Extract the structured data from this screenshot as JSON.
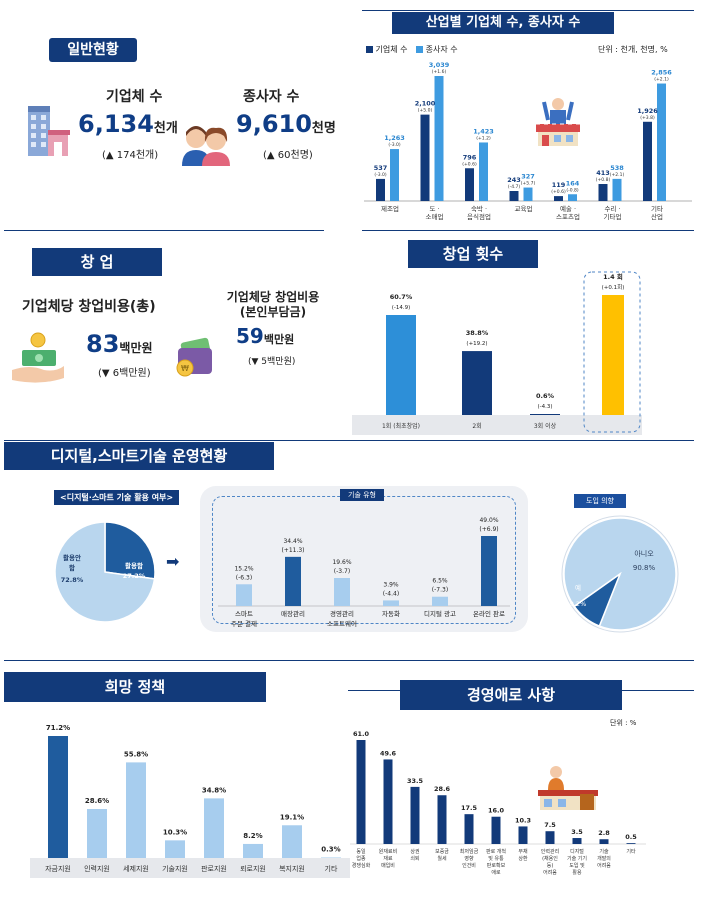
{
  "general": {
    "title": "일반현황",
    "companies": {
      "label": "기업체 수",
      "value": "6,134",
      "unit": "천개",
      "change": "(▲ 174천개)"
    },
    "employees": {
      "label": "종사자 수",
      "value": "9,610",
      "unit": "천명",
      "change": "(▲ 60천명)"
    }
  },
  "industry": {
    "title": "산업별 기업체 수, 종사자 수",
    "unit_note": "단위 : 천개, 천명, %",
    "legend": [
      "기업체 수",
      "종사자 수"
    ],
    "colors": {
      "companies": "#123a7a",
      "employees": "#3e9be0"
    },
    "categories": [
      "제조업",
      "도 · 소매업",
      "숙박 · 음식점업",
      "교육업",
      "예술 · 스포츠업",
      "수리 · 기타업",
      "기타 산업"
    ],
    "companies_values": [
      537,
      2100,
      796,
      243,
      119,
      413,
      1926
    ],
    "companies_labels": [
      "537",
      "2,100",
      "796",
      "243",
      "119",
      "413",
      "1,926"
    ],
    "companies_changes": [
      "(-3.0)",
      "(+5.0)",
      "(+0.6)",
      "(-4.7)",
      "(+0.6)",
      "(+0.8)",
      "(+3.8)"
    ],
    "employees_values": [
      1263,
      3039,
      1423,
      327,
      164,
      538,
      2856
    ],
    "employees_labels": [
      "1,263",
      "3,039",
      "1,423",
      "327",
      "164",
      "538",
      "2,856"
    ],
    "employees_changes": [
      "(-3.0)",
      "(+1.6)",
      "(+1.2)",
      "(+5.7)",
      "(-0.8)",
      "(+2.1)",
      "(+2.1)"
    ]
  },
  "startup": {
    "title": "창 업",
    "total": {
      "label": "기업체당 창업비용(총)",
      "value": "83",
      "unit": "백만원",
      "change": "(▼ 6백만원)"
    },
    "own": {
      "label": "기업체당 창업비용\n(본인부담금)",
      "label_line1": "기업체당 창업비용",
      "label_line2": "(본인부담금)",
      "value": "59",
      "unit": "백만원",
      "change": "(▼ 5백만원)"
    }
  },
  "startup_count": {
    "title": "창업 횟수",
    "categories": [
      "1회 (최초창업)",
      "2회",
      "3회 이상",
      ""
    ],
    "values": [
      60.7,
      38.8,
      0.6,
      1.4
    ],
    "value_labels": [
      "60.7%",
      "38.8%",
      "0.6%",
      "1.4 회"
    ],
    "changes": [
      "(-14.9)",
      "(+19.2)",
      "(-4.3)",
      "(+0.1회)"
    ],
    "colors": [
      "#2d8fd8",
      "#123a7a",
      "#123a7a",
      "#ffc000"
    ]
  },
  "digital": {
    "title": "디지털,스마트기술 운영현황",
    "usage_label": "<디지털·스마트 기술 활용 여부>",
    "pie": {
      "used_label": "활용함",
      "used_value": "27.2%",
      "used": 27.2,
      "unused_label": "활용안함",
      "unused_label_line1": "활용안",
      "unused_label_line2": "함",
      "unused_value": "72.8%",
      "unused": 72.8
    },
    "arrow": "➡",
    "tech_title": "기술 유형",
    "tech_categories": [
      "스마트 주문·결제",
      "매장관리",
      "경영관리 소프트웨어",
      "자동화",
      "디지털 광고",
      "온라인 판로"
    ],
    "tech_cat_line1": [
      "스마트",
      "매장관리",
      "경영관리",
      "자동화",
      "디지털 광고",
      "온라인 판로"
    ],
    "tech_cat_line2": [
      "주문·결제",
      "",
      "소프트웨어",
      "",
      "",
      ""
    ],
    "tech_values": [
      15.2,
      34.4,
      19.6,
      3.9,
      6.5,
      49.0
    ],
    "tech_labels": [
      "15.2%",
      "34.4%",
      "19.6%",
      "3.9%",
      "6.5%",
      "49.0%"
    ],
    "tech_changes": [
      "(-6.3)",
      "(+11.3)",
      "(-3.7)",
      "(-4.4)",
      "(-7.3)",
      "(+6.9)"
    ],
    "intent_title": "도입 의향",
    "intent": {
      "no_label": "아니오",
      "no_value": "90.8%",
      "no": 90.8,
      "yes_label": "예",
      "yes_value": "9.2%",
      "yes": 9.2
    }
  },
  "policy": {
    "title": "희망 정책",
    "categories": [
      "자금지원",
      "인력지원",
      "세제지원",
      "기술지원",
      "판로지원",
      "뢰로지원",
      "복지지원",
      "기타"
    ],
    "values": [
      71.2,
      28.6,
      55.8,
      10.3,
      34.8,
      8.2,
      19.1,
      0.3
    ],
    "labels": [
      "71.2%",
      "28.6%",
      "55.8%",
      "10.3%",
      "34.8%",
      "8.2%",
      "19.1%",
      "0.3%"
    ]
  },
  "difficulty": {
    "title": "경영애로 사항",
    "unit_note": "단위 : %",
    "categories": [
      "동일 업종 경쟁심화",
      "원재료비 재료 매입비",
      "상권 쇠퇴",
      "보증금 월세",
      "최저임금 영향 인건비",
      "판로 개척 및 유통 판로확보 애로",
      "부채 상환",
      "인력관리 (채용인 등) 어려움",
      "디지털 기술 기기 도입 및 활용",
      "기술 개발의 어려움",
      "기타"
    ],
    "cat_lines": [
      [
        "동일",
        "업종",
        "경쟁심화"
      ],
      [
        "원재료비",
        "재료",
        "매입비"
      ],
      [
        "상권",
        "쇠퇴"
      ],
      [
        "보증금",
        "월세"
      ],
      [
        "최저임금",
        "영향",
        "인건비"
      ],
      [
        "판로 개척",
        "및 유통",
        "판로확보",
        "애로"
      ],
      [
        "부채",
        "상환"
      ],
      [
        "인력관리",
        "(채용인",
        "등)",
        "어려움"
      ],
      [
        "디지털",
        "기술 기기",
        "도입 및",
        "활용"
      ],
      [
        "기술",
        "개발의",
        "어려움"
      ],
      [
        "기타"
      ]
    ],
    "values": [
      61.0,
      49.6,
      33.5,
      28.6,
      17.5,
      16.0,
      10.3,
      7.5,
      3.5,
      2.8,
      0.5
    ],
    "labels": [
      "61.0",
      "49.6",
      "33.5",
      "28.6",
      "17.5",
      "16.0",
      "10.3",
      "7.5",
      "3.5",
      "2.8",
      "0.5"
    ]
  },
  "chart_data": [
    {
      "type": "bar",
      "title": "산업별 기업체 수, 종사자 수",
      "categories": [
        "제조업",
        "도 · 소매업",
        "숙박 · 음식점업",
        "교육업",
        "예술 · 스포츠업",
        "수리 · 기타업",
        "기타 산업"
      ],
      "series": [
        {
          "name": "기업체 수",
          "values": [
            537,
            2100,
            796,
            243,
            119,
            413,
            1926
          ]
        },
        {
          "name": "종사자 수",
          "values": [
            1263,
            3039,
            1423,
            327,
            164,
            538,
            2856
          ]
        }
      ],
      "legend": "top-left"
    },
    {
      "type": "bar",
      "title": "창업 횟수",
      "categories": [
        "1회 (최초창업)",
        "2회",
        "3회 이상"
      ],
      "values": [
        60.7,
        38.8,
        0.6
      ]
    },
    {
      "type": "pie",
      "title": "<디지털·스마트 기술 활용 여부>",
      "categories": [
        "활용함",
        "활용안함"
      ],
      "values": [
        27.2,
        72.8
      ]
    },
    {
      "type": "bar",
      "title": "기술 유형",
      "categories": [
        "스마트 주문·결제",
        "매장관리",
        "경영관리 소프트웨어",
        "자동화",
        "디지털 광고",
        "온라인 판로"
      ],
      "values": [
        15.2,
        34.4,
        19.6,
        3.9,
        6.5,
        49.0
      ]
    },
    {
      "type": "pie",
      "title": "도입 의향",
      "categories": [
        "아니오",
        "예"
      ],
      "values": [
        90.8,
        9.2
      ]
    },
    {
      "type": "bar",
      "title": "희망 정책",
      "categories": [
        "자금지원",
        "인력지원",
        "세제지원",
        "기술지원",
        "판로지원",
        "뢰로지원",
        "복지지원",
        "기타"
      ],
      "values": [
        71.2,
        28.6,
        55.8,
        10.3,
        34.8,
        8.2,
        19.1,
        0.3
      ]
    },
    {
      "type": "bar",
      "title": "경영애로 사항",
      "categories": [
        "동일 업종 경쟁심화",
        "원재료비 재료 매입비",
        "상권 쇠퇴",
        "보증금 월세",
        "최저임금 영향 인건비",
        "판로 개척 및 유통 판로확보 애로",
        "부채 상환",
        "인력관리 (채용인 등) 어려움",
        "디지털 기술 기기 도입 및 활용",
        "기술 개발의 어려움",
        "기타"
      ],
      "values": [
        61.0,
        49.6,
        33.5,
        28.6,
        17.5,
        16.0,
        10.3,
        7.5,
        3.5,
        2.8,
        0.5
      ]
    }
  ]
}
